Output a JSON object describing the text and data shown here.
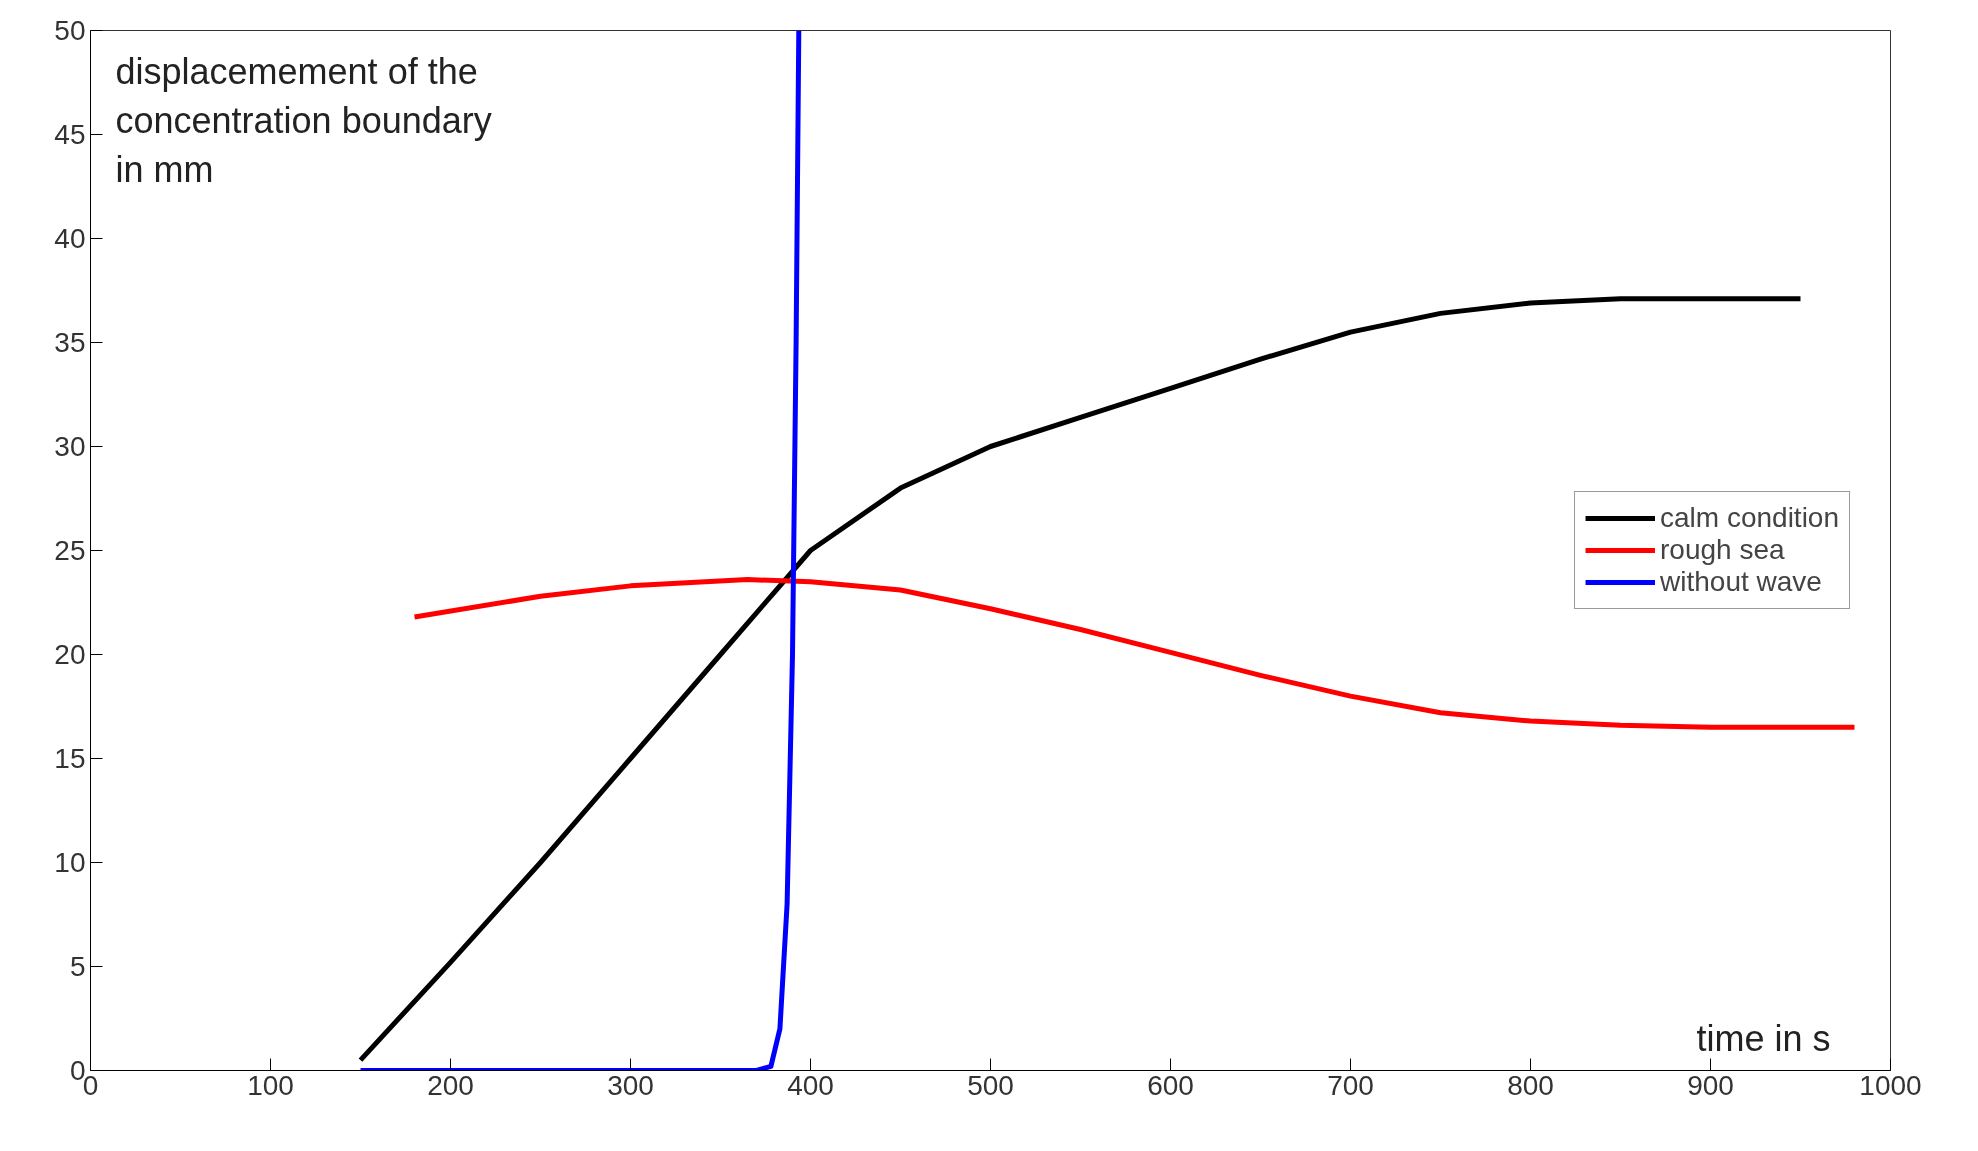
{
  "chart_data": {
    "type": "line",
    "xlabel": "time in s",
    "ylabel": "displacemement of the\nconcentration boundary\nin mm",
    "xlim": [
      0,
      1000
    ],
    "ylim": [
      0,
      50
    ],
    "xticks": [
      0,
      100,
      200,
      300,
      400,
      500,
      600,
      700,
      800,
      900,
      1000
    ],
    "yticks": [
      0,
      5,
      10,
      15,
      20,
      25,
      30,
      35,
      40,
      45,
      50
    ],
    "grid": false,
    "legend": "right",
    "line_style": "solid",
    "series": [
      {
        "name": "calm condition",
        "color": "#000000",
        "x": [
          150,
          200,
          250,
          300,
          350,
          380,
          400,
          450,
          500,
          550,
          600,
          650,
          700,
          750,
          800,
          850,
          900,
          950
        ],
        "values": [
          0.5,
          5.2,
          10,
          15,
          20,
          23,
          25,
          28,
          30,
          31.4,
          32.8,
          34.2,
          35.5,
          36.4,
          36.9,
          37.1,
          37.1,
          37.1
        ]
      },
      {
        "name": "rough sea",
        "color": "#ff0000",
        "x": [
          180,
          250,
          300,
          365,
          400,
          450,
          500,
          550,
          600,
          650,
          700,
          750,
          800,
          850,
          900,
          980
        ],
        "values": [
          21.8,
          22.8,
          23.3,
          23.6,
          23.5,
          23.1,
          22.2,
          21.2,
          20.1,
          19.0,
          18.0,
          17.2,
          16.8,
          16.6,
          16.5,
          16.5
        ]
      },
      {
        "name": "without wave",
        "color": "#0000ff",
        "x": [
          150,
          370,
          378,
          383,
          387,
          390,
          392,
          393.5
        ],
        "values": [
          0,
          0,
          0.2,
          2,
          8,
          20,
          35,
          50
        ]
      }
    ]
  }
}
